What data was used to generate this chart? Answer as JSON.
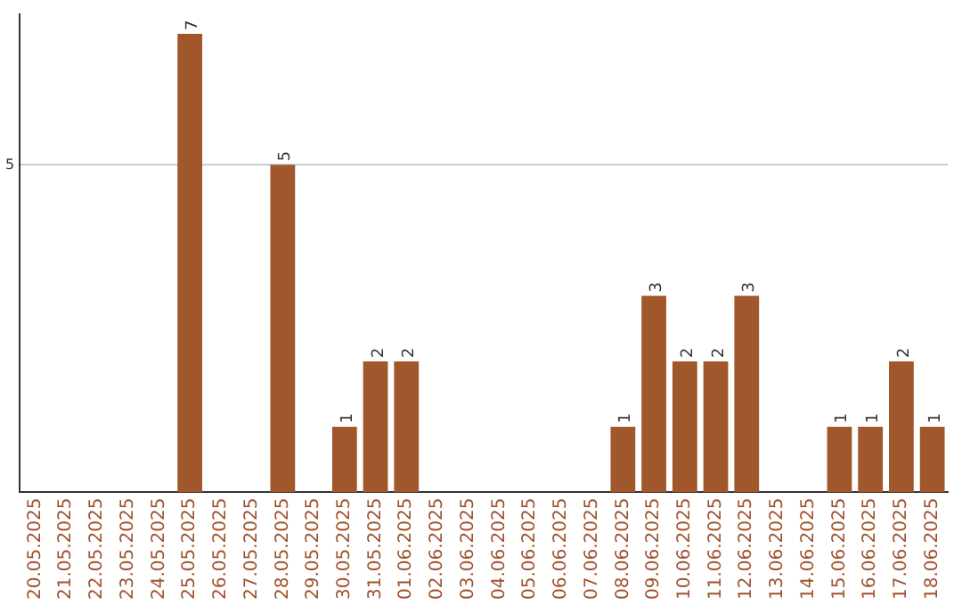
{
  "chart_data": {
    "type": "bar",
    "categories": [
      "20.05.2025",
      "21.05.2025",
      "22.05.2025",
      "23.05.2025",
      "24.05.2025",
      "25.05.2025",
      "26.05.2025",
      "27.05.2025",
      "28.05.2025",
      "29.05.2025",
      "30.05.2025",
      "31.05.2025",
      "01.06.2025",
      "02.06.2025",
      "03.06.2025",
      "04.06.2025",
      "05.06.2025",
      "06.06.2025",
      "07.06.2025",
      "08.06.2025",
      "09.06.2025",
      "10.06.2025",
      "11.06.2025",
      "12.06.2025",
      "13.06.2025",
      "14.06.2025",
      "15.06.2025",
      "16.06.2025",
      "17.06.2025",
      "18.06.2025"
    ],
    "values": [
      0,
      0,
      0,
      0,
      0,
      7,
      0,
      0,
      5,
      0,
      1,
      2,
      2,
      0,
      0,
      0,
      0,
      0,
      0,
      1,
      3,
      2,
      2,
      3,
      0,
      0,
      1,
      1,
      2,
      1
    ],
    "value_labels": [
      null,
      null,
      null,
      null,
      null,
      "7",
      null,
      null,
      "5",
      null,
      "1",
      "2",
      "2",
      null,
      null,
      null,
      null,
      null,
      null,
      "1",
      "3",
      "2",
      "2",
      "3",
      null,
      null,
      "1",
      "1",
      "2",
      "1"
    ],
    "color": "#a0572b",
    "ylim": [
      0,
      7.3
    ],
    "yticks": [
      5
    ],
    "grid": "y"
  }
}
